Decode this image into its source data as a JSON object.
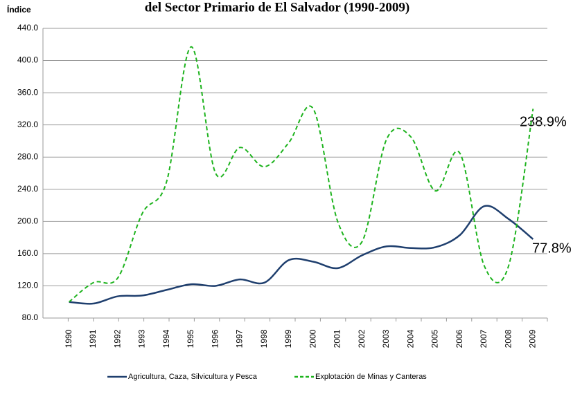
{
  "chart_data": {
    "type": "line",
    "title": "del Sector Primario de El Salvador (1990-2009)",
    "y_label": "Índice",
    "categories": [
      "1990",
      "1991",
      "1992",
      "1993",
      "1994",
      "1995",
      "1996",
      "1997",
      "1998",
      "1999",
      "2000",
      "2001",
      "2002",
      "2003",
      "2004",
      "2005",
      "2006",
      "2007",
      "2008",
      "2009"
    ],
    "series": [
      {
        "name": "Agricultura, Caza, Silvicultura y Pesca",
        "color": "#1f3f6e",
        "dash": false,
        "values": [
          100,
          98,
          107,
          108,
          115,
          122,
          120,
          128,
          124,
          152,
          150,
          142,
          158,
          169,
          167,
          168,
          183,
          219,
          203,
          178
        ]
      },
      {
        "name": "Explotación de Minas y Canteras",
        "color": "#1db31d",
        "dash": true,
        "values": [
          100,
          124,
          130,
          210,
          250,
          417,
          260,
          292,
          268,
          298,
          340,
          200,
          175,
          302,
          305,
          238,
          285,
          145,
          145,
          340
        ]
      }
    ],
    "annotations": [
      "238.9%",
      "77.8%"
    ],
    "ylim": [
      80,
      440
    ],
    "yticks": [
      {
        "value": 80,
        "label": "80.0"
      },
      {
        "value": 120,
        "label": "120.0"
      },
      {
        "value": 160,
        "label": "160.0"
      },
      {
        "value": 200,
        "label": "200.0"
      },
      {
        "value": 240,
        "label": "240.0"
      },
      {
        "value": 280,
        "label": "280.0"
      },
      {
        "value": 320,
        "label": "320.0"
      },
      {
        "value": 360,
        "label": "360.0"
      },
      {
        "value": 400,
        "label": "400.0"
      },
      {
        "value": 440,
        "label": "440.0"
      }
    ],
    "grid": true,
    "legend": "bottom"
  }
}
